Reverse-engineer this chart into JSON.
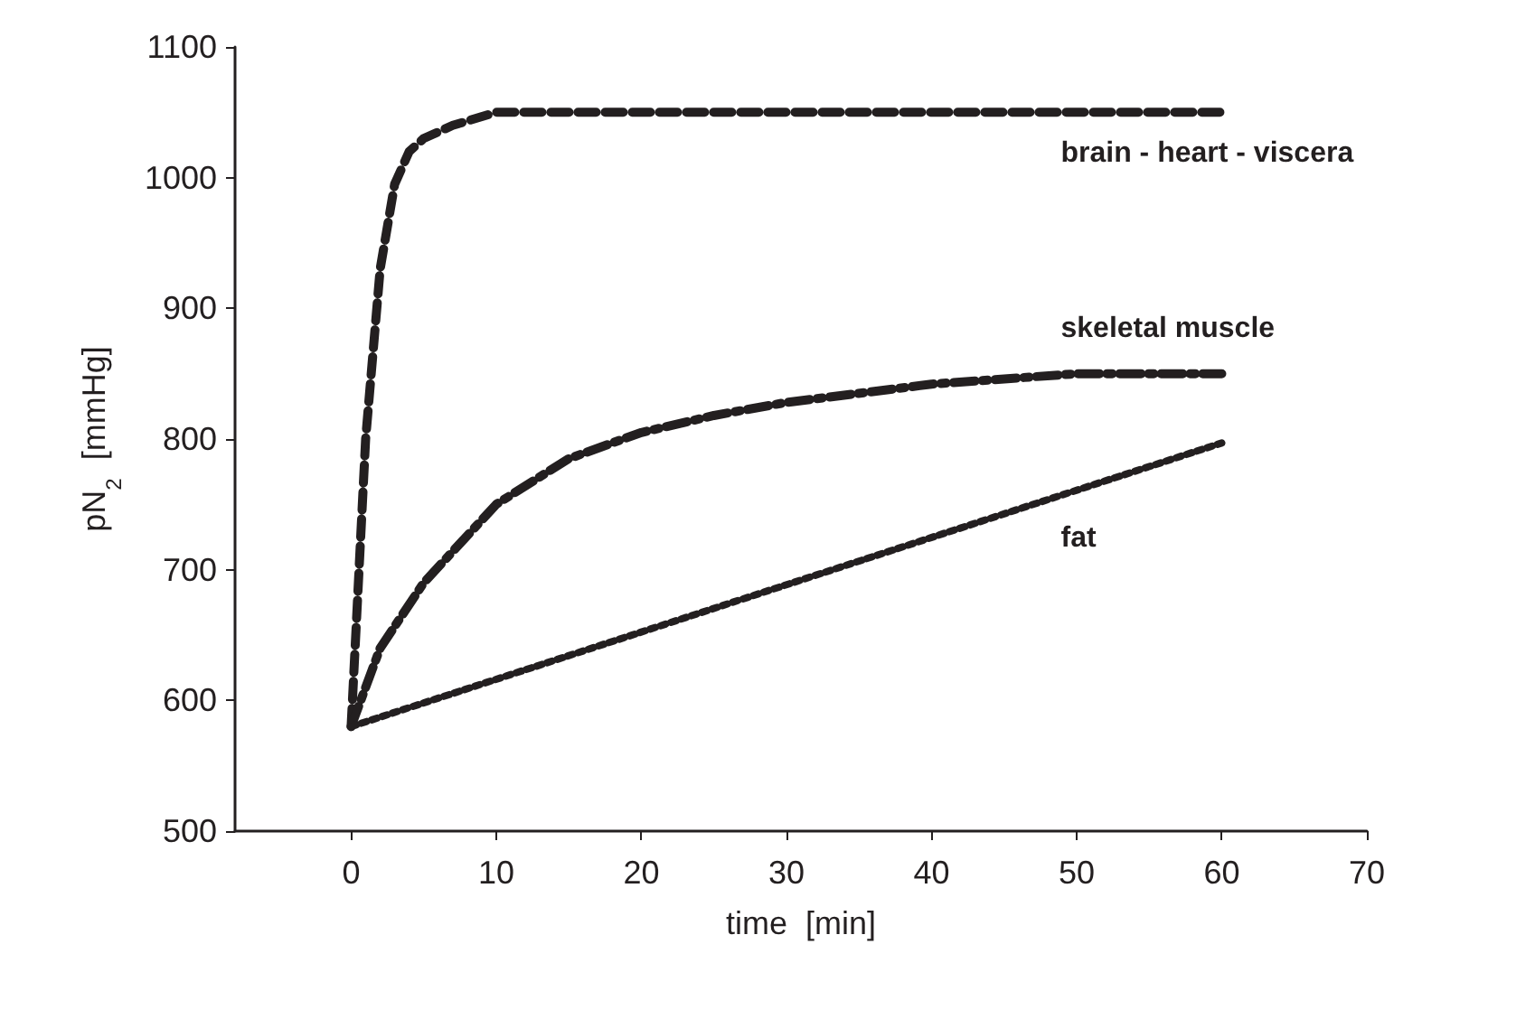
{
  "chart_data": {
    "type": "line",
    "xlabel": "time  [min]",
    "ylabel": "pN$_{2}$  [mmHg]",
    "xlim": [
      -8,
      70
    ],
    "xticks": [
      0,
      10,
      20,
      30,
      40,
      50,
      60,
      70
    ],
    "ylim": [
      500,
      1100
    ],
    "yticks": [
      500,
      600,
      700,
      800,
      900,
      1000,
      1100
    ],
    "grid": false,
    "legend": false,
    "marker": "none",
    "series": [
      {
        "name": "brain - heart - viscera",
        "color": "#231f20",
        "line_style": "dashed",
        "x": [
          0,
          1,
          2,
          3,
          4,
          5,
          7,
          10,
          20,
          30,
          40,
          50,
          60
        ],
        "values": [
          580,
          800,
          930,
          995,
          1020,
          1030,
          1040,
          1050,
          1050,
          1050,
          1050,
          1050,
          1050
        ]
      },
      {
        "name": "skeletal muscle",
        "color": "#231f20",
        "line_style": "dashdot",
        "x": [
          0,
          2,
          5,
          10,
          15,
          20,
          25,
          30,
          40,
          50,
          60
        ],
        "values": [
          580,
          640,
          690,
          750,
          785,
          805,
          818,
          828,
          842,
          850,
          850
        ]
      },
      {
        "name": "fat",
        "color": "#231f20",
        "line_style": "dotted",
        "x": [
          0,
          60
        ],
        "values": [
          580,
          797
        ]
      }
    ]
  }
}
